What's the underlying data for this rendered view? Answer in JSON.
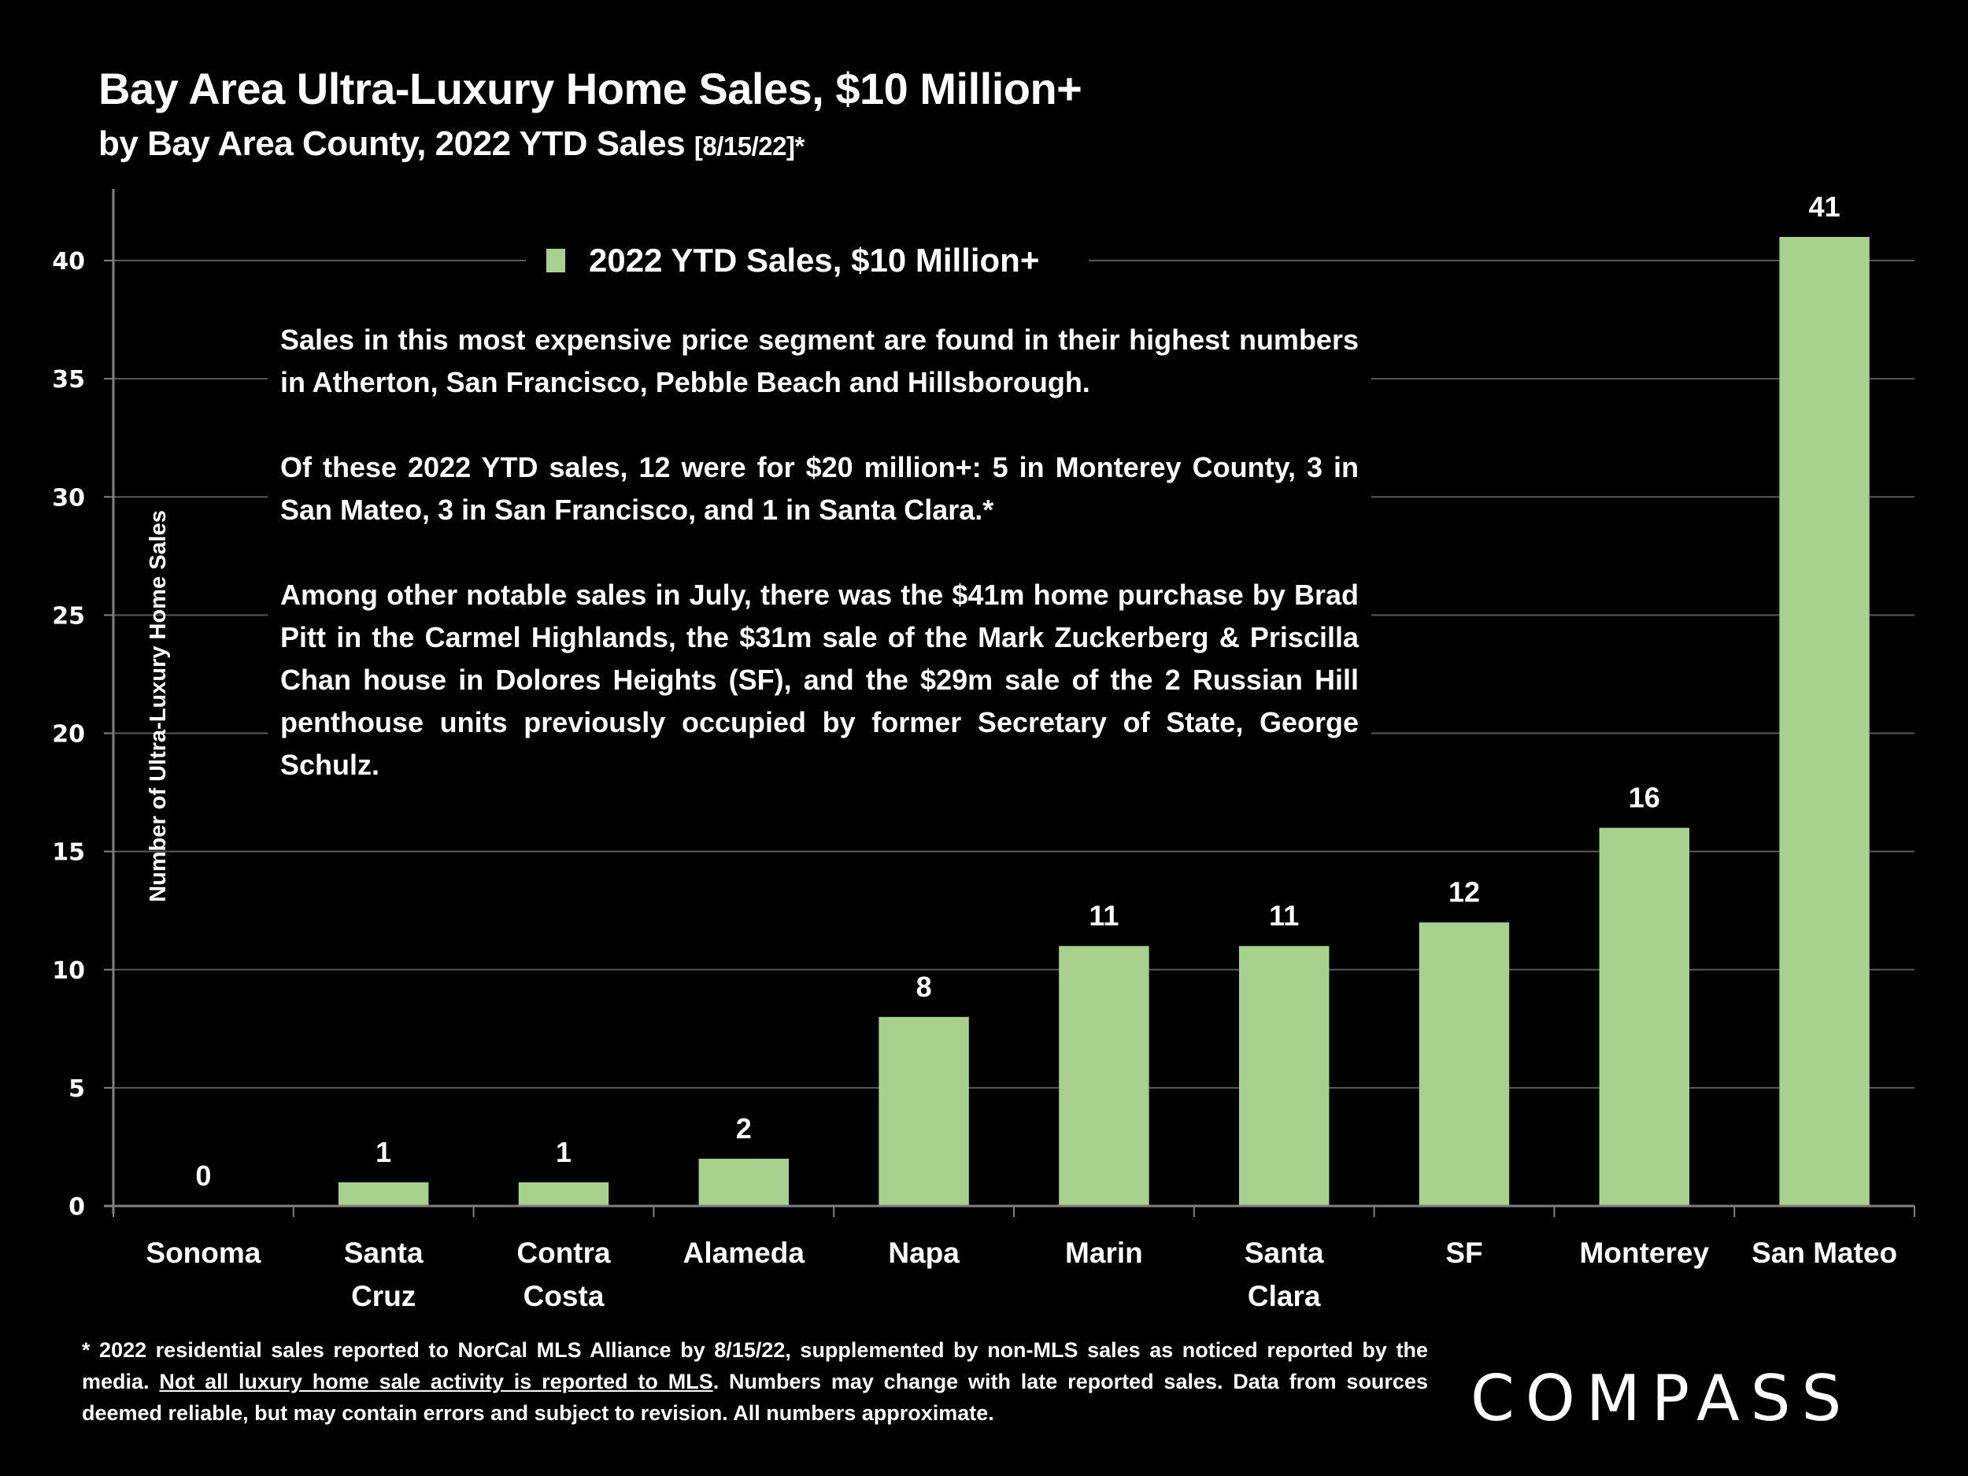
{
  "header": {
    "title": "Bay Area Ultra-Luxury Home Sales, $10 Million+",
    "subtitle": "by Bay Area County, 2022 YTD Sales",
    "subtitle_date": "[8/15/22]*"
  },
  "annotation": {
    "paragraphs": [
      "Sales in this most expensive price segment are found in their highest numbers in Atherton, San Francisco, Pebble Beach and Hillsborough.",
      "Of these 2022 YTD sales, 12 were for $20 million+: 5 in Monterey County, 3 in San Mateo, 3 in San Francisco, and 1 in Santa Clara.*",
      "Among other notable sales in July, there was the $41m home purchase by Brad Pitt in the Carmel Highlands, the $31m sale of the Mark Zuckerberg & Priscilla Chan house in Dolores Heights (SF), and the $29m sale of the 2 Russian Hill penthouse units previously occupied by former Secretary of State, George Schulz."
    ]
  },
  "footnote": {
    "part1": "* 2022 residential sales reported to NorCal MLS Alliance by 8/15/22, supplemented by non-MLS sales as noticed reported by the media. ",
    "underlined": "Not all luxury home sale activity is reported to MLS",
    "part2": ". Numbers may change with late reported sales. Data from sources deemed reliable, but may contain errors and subject to revision. All numbers approximate."
  },
  "logo": {
    "text": "COMPASS"
  },
  "colors": {
    "bar": "#a9d18e",
    "background": "#000000",
    "grid": "#595959",
    "axis": "#808080"
  },
  "chart_data": {
    "type": "bar",
    "title": "Bay Area Ultra-Luxury Home Sales, $10 Million+",
    "subtitle": "by Bay Area County, 2022 YTD Sales [8/15/22]*",
    "xlabel": "",
    "ylabel": "Number of Ultra-Luxury Home Sales",
    "categories": [
      [
        "Sonoma"
      ],
      [
        "Santa",
        "Cruz"
      ],
      [
        "Contra",
        "Costa"
      ],
      [
        "Alameda"
      ],
      [
        "Napa"
      ],
      [
        "Marin"
      ],
      [
        "Santa",
        "Clara"
      ],
      [
        "SF"
      ],
      [
        "Monterey"
      ],
      [
        "San Mateo"
      ]
    ],
    "series": [
      {
        "name": "2022 YTD Sales, $10 Million+",
        "values": [
          0,
          1,
          1,
          2,
          8,
          11,
          11,
          12,
          16,
          41
        ]
      }
    ],
    "ylim": [
      0,
      43
    ],
    "yticks": [
      0,
      5,
      10,
      15,
      20,
      25,
      30,
      35,
      40
    ],
    "grid": true,
    "legend": "top-center",
    "data_labels": true
  }
}
